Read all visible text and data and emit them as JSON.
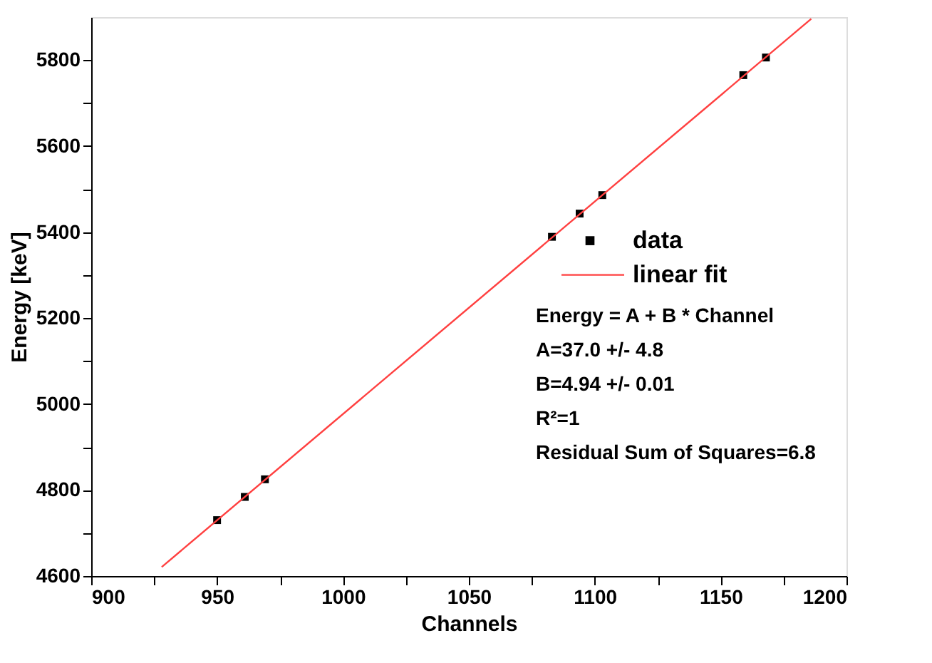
{
  "chart_data": {
    "type": "scatter",
    "xlabel": "Channels",
    "ylabel": "Energy [keV]",
    "xlim": [
      900,
      1200
    ],
    "ylim": [
      4600,
      5900
    ],
    "xticks": [
      900,
      {
        "value": 925,
        "label": null
      },
      950,
      {
        "value": 975,
        "label": null
      },
      1000,
      {
        "value": 1025,
        "label": null
      },
      1050,
      {
        "value": 1075,
        "label": null
      },
      1100,
      {
        "value": 1125,
        "label": null
      },
      1150,
      {
        "value": 1175,
        "label": null
      },
      1200
    ],
    "yticks": [
      4600,
      {
        "value": 4700,
        "label": null
      },
      4800,
      {
        "value": 4900,
        "label": null
      },
      5000,
      {
        "value": 5100,
        "label": null
      },
      5200,
      {
        "value": 5300,
        "label": null
      },
      5400,
      {
        "value": 5500,
        "label": null
      },
      5600,
      {
        "value": 5700,
        "label": null
      },
      5800
    ],
    "grid": false,
    "legend": "right",
    "series": [
      {
        "name": "data",
        "marker": "square",
        "color": "#000000",
        "x": [
          950,
          961,
          969,
          1083,
          1094,
          1103,
          1159,
          1168
        ],
        "values": [
          4730,
          4784,
          4825,
          5389,
          5443,
          5486,
          5765,
          5806
        ]
      },
      {
        "name": "linear fit",
        "type": "line",
        "color": "#ff4040",
        "line_style": "solid",
        "x": [
          928,
          1186
        ],
        "values": [
          4621,
          5896
        ]
      }
    ],
    "annotations": [
      "Energy = A + B * Channel",
      "A=37.0 +/- 4.8",
      "B=4.94 +/- 0.01",
      "R²=1",
      "Residual Sum of Squares=6.8"
    ]
  }
}
